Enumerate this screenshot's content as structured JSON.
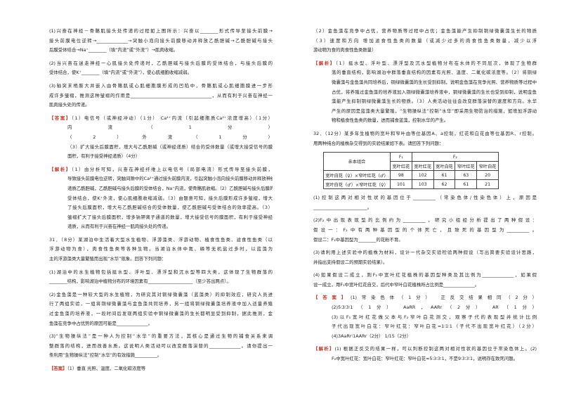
{
  "columns": [
    {
      "blocks": [
        {
          "lines": [
            "(1)兴奋在神经－骨骼肌接头处传递的过程如上图所示：兴奋以________形式传导至接头前膜→",
            "接头前膜电位逆转→______________→突触小泡向接头前膜移动并释放乙酰胆碱→乙酰胆碱与接头",
            "后膜受体结合→Na⁺________（填“内流”或“外流”）→肌肉收缩。"
          ]
        },
        {
          "lines": [
            "(2)当兴奋在迷走神经一心肌接头处传递时，乙酰胆碱与接头后膜的受体结合，与接头后膜的",
            "受体结合，使K⁺________（填“内流”或“外流”），使心肌细胞收缩减弱。"
          ]
        },
        {
          "lines": [
            "(3)轴突末梢膨大并嵌入由骨骼肌或心肌细胞膜形成的凹陷中，骨骼肌或心肌细胞膜进一步形",
            "成许多皱褶，推测这种皱褶的作用是____________________________________，从而有利于兴奋在神经一",
            "肌肉接头处的传递。"
          ]
        },
        {
          "label": "【答案】",
          "lines": [
            "（1）电信号（或神经冲动）（1分）        Ca²⁺内流（引起细胞质Ca²⁺浓度增高）（1分）",
            "内流（1分）",
            "（2）外流（1分）",
            "（3）扩大接头后膜面积，增大与乙酰胆碱（或神经递质）结合的受体数量（或增大接受信号的膜",
            "面积，有利于接受神经递质）（4分）"
          ]
        },
        {
          "label": "【解析】",
          "lines": [
            "（1）由分析可知，兴奋在神经纤维上以电信号（局部电流）形式传导至接头前膜，",
            "导致接头前膜电位逆转，突触间隙中的Ca²⁺通过接头前膜内流，引起突触小泡向接头前膜移动并释放神经",
            "递质乙酰胆碱，乙酰胆碱与接头后膜的受体结合，Na⁺内流，使骨骼肌收缩。（2）乙酰胆碱与接头后膜的",
            "受体结合，使K⁺外流，使心肌细胞收缩减弱。（3）由题意可知，接头后膜形成许多皱褶，增大",
            "了接头后膜面积，增大与乙酰胆碱结合的受体数量，使乙酰胆碱与受体结合的效率提高。（3）",
            "皱褶扩大了接头后膜面积，增多钠钾离子通道的数量，增大接受信号的膜面积，有利于接受神经",
            "递质，从而有利于兴奋在神经一肌肉接头处的传递。"
          ]
        },
        {
          "lines": [
            "31．（8分）某湖泊中生活着大型水生植物、浮游藻类、浮游动物、植食性鱼类、滤食性鱼类（以",
            "浮游动物为食），肉食性鱼类等各种生物。当湖泊水体中氮、磷等无机盐过多时，以蓝藻为",
            "主的浮游藻类大量繁殖而出现“水华”现象。回答下列问题："
          ]
        },
        {
          "lines": [
            "(1)湖泊中的水生植物包括挺水型、浮叶型、漂浮型和沉水型等四大类，这体现了生物群落的",
            "________结构，影响湖泊中植物分布的环境因素有____________________（至少答出两点）。"
          ]
        },
        {
          "lines": [
            "(2)金鱼藻是一种较大型的水生植物，为研究其对铜绿微囊藻（蓝藻类）的抑制效应，研究人员进",
            "行了两组实验，一组将铜绿微囊藻与金鱼藻共同培养，另一组将铜绿微囊藻培养液中加入适量养殖",
            "过金鱼藻的培养液，一段时间后发现两组实验中铜绿微囊藻的生长都明显受到抑制，据此推测，金",
            "鱼藻在竞争中占优势的原因可能是______________。"
          ]
        },
        {
          "lines": [
            "(3)“生物操纵法”是一种人为控制“水华”的重要方法，其核心是通过生物的捕食关系来调",
            "整群落的结构，进而改善水质。这说明人类活动可以改变群落演替的______________。请你提出一",
            "条利用“生物操纵法”控制“水华”的有效措施__________。"
          ]
        },
        {
          "label": "【答案】",
          "lines": [
            "（1）垂直        光照、温度、二氧化碳浓度等"
          ]
        }
      ]
    },
    {
      "blocks": [
        {
          "lines": [
            "（2）金鱼藻在竞争中占优，营养物质等过程中占优；金鱼藻能产生抑制铜绿微囊藻生长的物质",
            "（3）速度和方向        增加滤食性鱼类的数量（或减少过多的肉食性鱼类数量，减少以浮",
            "游动物为食的肉食性鱼类数量）"
          ]
        },
        {
          "label": "【解析】",
          "lines": [
            "（1）挺水型、浮叶型、漂浮型及沉水型植物分布在水体的不同层次，体现了生物群",
            "落的垂直结构，影响湖泊中群落垂直结构的因素有光照、温度、二氧化碳浓度等。（2）将铜绿",
            "微囊藻与金鱼藻共同培养后，铜绿微囊藻的生长受到抑制，说明金鱼藻在竞争光照、营养物质等过程中",
            "占优，将养殖过金鱼藻的培养液加入铜绿微囊藻培养液中，铜绿微囊藻的生长也受到抑制，说明金鱼",
            "藻能产生抑制铜绿微囊藻生长的物质。（3）人类活动往往会改变群落演替的速度和方向。水华",
            "产生的原因是蓝藻类大量繁殖，“生物操纵法”控制“水华”即采用生物防治的措施，如增加浮游动",
            "物和植食性鱼类的数量，进而捕食蓝藻，控制水华的产生。"
          ]
        },
        {
          "lines": [
            "32．（12分）某多年生植物的宽叶和窄叶由等位基因A、a控制，红花和白花由等位基因R、r控制。",
            "用两种纯合的植株杂交得到的实验结果如下表。请回答下列问题："
          ]
        },
        {
          "table": {
            "head": [
              "亲本组合",
              "F₁",
              "F₂"
            ],
            "subhead": [
              "宽叶红花",
              "宽叶红花",
              "宽叶白花",
              "窄叶红花",
              "窄叶白花"
            ],
            "rows": [
              [
                "宽叶白花（♀）×窄叶红花（♂）",
                98,
                102,
                61,
                63,
                20
              ],
              [
                "宽叶白花（♂）×窄叶红花（♀）",
                101,
                103,
                62,
                61,
                21
              ]
            ]
          }
        },
        {
          "lines": [
            "(1)控制这两对相对性状的基因位于__________（常染色体/性染色体）上，原因是",
            "________________________。"
          ]
        },
        {
          "lines": [
            "(2)F₂中出现表现型的比例约为__________，研究小组经分析提出了两种假设：",
            "假设一：F₂中有两种基因型的个体死亡，且致死的基因型为__________。",
            "假设二：F₁中基因型为________的花粉不育。"
          ]
        },
        {
          "lines": [
            "(3)请利用上述实验中的植株为材料，设计一代杂交实验检验两种假设（写出简要实验设计思路，",
            "并指出支持假设二的预期实验结果）。"
          ]
        },
        {
          "lines": [
            "(4)如果假设二成立，则F₂中宽叶红花植株的基因型种类及其比例为______________，如果假",
            "设一成立，用F₁中宽叶红花自交，后代中窄叶白花植株所占比例是______________。"
          ]
        },
        {
          "label": "【答案】",
          "lines": [
            "(1)常染色体（1分）        正反交结果相同（2分）",
            "(2)5∶3∶3∶1（1分）        AaRR，AARr（2分）        AR（1分）",
            "(3)以F₁宽叶红花做父本与F₂窄叶白花测交，观察子代的表现型并统计比例",
            "子代出现宽叶白花：窄叶红花：窄叶白花=1∶1∶1（子代不出现宽叶红花）（2分）",
            "(4)3AaRr∶1AARr（2分）        1/15（2分）"
          ]
        },
        {
          "label": "【解析】",
          "lines": [
            "(1) 根据正反交的结果一样，可以判断控制这两对相对性状的基因位于常染色体上。(2)",
            "F₂中宽叶红花：宽叶白花：窄叶红花：窄叶白花≈5∶3∶3∶1，不是9∶3∶3∶1，说明存在致死问题。"
          ]
        }
      ]
    }
  ]
}
